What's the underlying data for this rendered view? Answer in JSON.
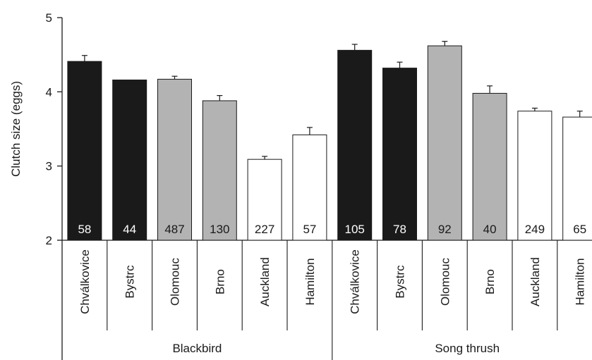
{
  "chart_data": {
    "type": "bar",
    "ylabel": "Clutch size (eggs)",
    "ylim": [
      2,
      5
    ],
    "yticks": [
      "2",
      "3",
      "4",
      "5"
    ],
    "grid": false,
    "legend": "none",
    "colors": {
      "black": "#1a1a1a",
      "grey": "#b3b3b3",
      "white": "#ffffff"
    },
    "groups": [
      {
        "name": "Blackbird",
        "bars": [
          {
            "category": "Chválkovice",
            "value": 4.41,
            "error": 0.08,
            "n": "58",
            "fill": "black"
          },
          {
            "category": "Bystrc",
            "value": 4.16,
            "error": 0.0,
            "n": "44",
            "fill": "black"
          },
          {
            "category": "Olomouc",
            "value": 4.17,
            "error": 0.04,
            "n": "487",
            "fill": "grey"
          },
          {
            "category": "Brno",
            "value": 3.88,
            "error": 0.07,
            "n": "130",
            "fill": "grey"
          },
          {
            "category": "Auckland",
            "value": 3.09,
            "error": 0.04,
            "n": "227",
            "fill": "white"
          },
          {
            "category": "Hamilton",
            "value": 3.42,
            "error": 0.1,
            "n": "57",
            "fill": "white"
          }
        ]
      },
      {
        "name": "Song thrush",
        "bars": [
          {
            "category": "Chválkovice",
            "value": 4.56,
            "error": 0.08,
            "n": "105",
            "fill": "black"
          },
          {
            "category": "Bystrc",
            "value": 4.32,
            "error": 0.08,
            "n": "78",
            "fill": "black"
          },
          {
            "category": "Olomouc",
            "value": 4.62,
            "error": 0.06,
            "n": "92",
            "fill": "grey"
          },
          {
            "category": "Brno",
            "value": 3.98,
            "error": 0.1,
            "n": "40",
            "fill": "grey"
          },
          {
            "category": "Auckland",
            "value": 3.74,
            "error": 0.04,
            "n": "249",
            "fill": "white"
          },
          {
            "category": "Hamilton",
            "value": 3.66,
            "error": 0.08,
            "n": "65",
            "fill": "white"
          }
        ]
      }
    ]
  }
}
